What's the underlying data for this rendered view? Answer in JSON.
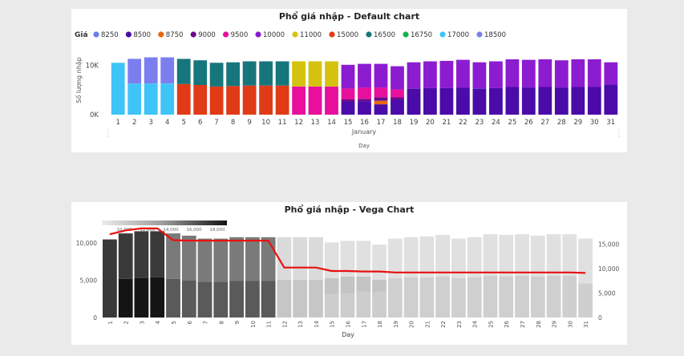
{
  "default_chart": {
    "title": "Phổ giá nhập - Default chart",
    "legend_label": "Giá",
    "ylabel": "Số lượng nhập",
    "xlabel": "Day",
    "month_label": "January",
    "y_ticks": [
      {
        "v": 0,
        "label": "0K"
      },
      {
        "v": 10000,
        "label": "10K"
      }
    ]
  },
  "vega_chart": {
    "title": "Phổ giá nhập - Vega Chart",
    "xlabel": "Day",
    "left_ticks": [
      {
        "v": 0,
        "label": "0"
      },
      {
        "v": 5000,
        "label": "5,000"
      },
      {
        "v": 10000,
        "label": "10,000"
      }
    ],
    "right_ticks": [
      {
        "v": 0,
        "label": "0"
      },
      {
        "v": 5000,
        "label": "5,000"
      },
      {
        "v": 10000,
        "label": "10,000"
      },
      {
        "v": 15000,
        "label": "15,000"
      }
    ],
    "gradient_ticks": [
      "10,000",
      "12,000",
      "14,000",
      "16,000",
      "18,000"
    ]
  },
  "chart_data": [
    {
      "type": "bar",
      "stacked": true,
      "title": "Phổ giá nhập - Default chart",
      "xlabel": "Day",
      "ylabel": "Số lượng nhập",
      "x_group_label": "January",
      "ylim": [
        0,
        12500
      ],
      "legend_title": "Giá",
      "legend_position": "top-left",
      "grid": false,
      "legend": [
        {
          "name": "8250",
          "color": "#6b7bef"
        },
        {
          "name": "8500",
          "color": "#4b0ba8"
        },
        {
          "name": "8750",
          "color": "#e8680f"
        },
        {
          "name": "9000",
          "color": "#6b0b8c"
        },
        {
          "name": "9500",
          "color": "#e80f9c"
        },
        {
          "name": "10000",
          "color": "#8c1cd0"
        },
        {
          "name": "11000",
          "color": "#d4c20f"
        },
        {
          "name": "15000",
          "color": "#e03a16"
        },
        {
          "name": "16500",
          "color": "#16767c"
        },
        {
          "name": "16750",
          "color": "#10b54a"
        },
        {
          "name": "17000",
          "color": "#3ec4f7"
        },
        {
          "name": "18500",
          "color": "#7c7ef0"
        }
      ],
      "days": [
        {
          "day": "1",
          "stack": [
            {
              "c": "#3ec4f7",
              "v": 10500
            }
          ]
        },
        {
          "day": "2",
          "stack": [
            {
              "c": "#3ec4f7",
              "v": 6300
            },
            {
              "c": "#7c7ef0",
              "v": 5000
            }
          ]
        },
        {
          "day": "3",
          "stack": [
            {
              "c": "#3ec4f7",
              "v": 6300
            },
            {
              "c": "#7c7ef0",
              "v": 5300
            }
          ]
        },
        {
          "day": "4",
          "stack": [
            {
              "c": "#3ec4f7",
              "v": 6300
            },
            {
              "c": "#7c7ef0",
              "v": 5300
            }
          ]
        },
        {
          "day": "5",
          "stack": [
            {
              "c": "#e03a16",
              "v": 6200
            },
            {
              "c": "#16767c",
              "v": 5100
            }
          ]
        },
        {
          "day": "6",
          "stack": [
            {
              "c": "#e03a16",
              "v": 6000
            },
            {
              "c": "#16767c",
              "v": 5000
            }
          ]
        },
        {
          "day": "7",
          "stack": [
            {
              "c": "#e03a16",
              "v": 5700
            },
            {
              "c": "#16767c",
              "v": 4800
            }
          ]
        },
        {
          "day": "8",
          "stack": [
            {
              "c": "#e03a16",
              "v": 5800
            },
            {
              "c": "#16767c",
              "v": 4800
            }
          ]
        },
        {
          "day": "9",
          "stack": [
            {
              "c": "#e03a16",
              "v": 5900
            },
            {
              "c": "#16767c",
              "v": 4900
            }
          ]
        },
        {
          "day": "10",
          "stack": [
            {
              "c": "#e03a16",
              "v": 5900
            },
            {
              "c": "#16767c",
              "v": 4900
            }
          ]
        },
        {
          "day": "11",
          "stack": [
            {
              "c": "#e03a16",
              "v": 5900
            },
            {
              "c": "#16767c",
              "v": 4900
            }
          ]
        },
        {
          "day": "12",
          "stack": [
            {
              "c": "#e80f9c",
              "v": 5700
            },
            {
              "c": "#d4c20f",
              "v": 5100
            }
          ]
        },
        {
          "day": "13",
          "stack": [
            {
              "c": "#e80f9c",
              "v": 5700
            },
            {
              "c": "#d4c20f",
              "v": 5100
            }
          ]
        },
        {
          "day": "14",
          "stack": [
            {
              "c": "#e80f9c",
              "v": 5700
            },
            {
              "c": "#d4c20f",
              "v": 5100
            }
          ]
        },
        {
          "day": "15",
          "stack": [
            {
              "c": "#4b0ba8",
              "v": 2600
            },
            {
              "c": "#6b0b8c",
              "v": 500
            },
            {
              "c": "#e80f9c",
              "v": 2200
            },
            {
              "c": "#8c1cd0",
              "v": 4800
            }
          ]
        },
        {
          "day": "16",
          "stack": [
            {
              "c": "#4b0ba8",
              "v": 2700
            },
            {
              "c": "#6b0b8c",
              "v": 500
            },
            {
              "c": "#e80f9c",
              "v": 2300
            },
            {
              "c": "#8c1cd0",
              "v": 4800
            }
          ]
        },
        {
          "day": "17",
          "stack": [
            {
              "c": "#4b0ba8",
              "v": 2100
            },
            {
              "c": "#e8680f",
              "v": 700
            },
            {
              "c": "#6b0b8c",
              "v": 700
            },
            {
              "c": "#e80f9c",
              "v": 2000
            },
            {
              "c": "#8c1cd0",
              "v": 4800
            }
          ]
        },
        {
          "day": "18",
          "stack": [
            {
              "c": "#4b0ba8",
              "v": 3000
            },
            {
              "c": "#6b0b8c",
              "v": 500
            },
            {
              "c": "#e80f9c",
              "v": 1600
            },
            {
              "c": "#8c1cd0",
              "v": 4700
            }
          ]
        },
        {
          "day": "19",
          "stack": [
            {
              "c": "#4b0ba8",
              "v": 5300
            },
            {
              "c": "#8c1cd0",
              "v": 5300
            }
          ]
        },
        {
          "day": "20",
          "stack": [
            {
              "c": "#4b0ba8",
              "v": 5400
            },
            {
              "c": "#8c1cd0",
              "v": 5400
            }
          ]
        },
        {
          "day": "21",
          "stack": [
            {
              "c": "#4b0ba8",
              "v": 5400
            },
            {
              "c": "#8c1cd0",
              "v": 5500
            }
          ]
        },
        {
          "day": "22",
          "stack": [
            {
              "c": "#4b0ba8",
              "v": 5500
            },
            {
              "c": "#8c1cd0",
              "v": 5600
            }
          ]
        },
        {
          "day": "23",
          "stack": [
            {
              "c": "#4b0ba8",
              "v": 5300
            },
            {
              "c": "#8c1cd0",
              "v": 5300
            }
          ]
        },
        {
          "day": "24",
          "stack": [
            {
              "c": "#4b0ba8",
              "v": 5400
            },
            {
              "c": "#8c1cd0",
              "v": 5400
            }
          ]
        },
        {
          "day": "25",
          "stack": [
            {
              "c": "#4b0ba8",
              "v": 5600
            },
            {
              "c": "#8c1cd0",
              "v": 5600
            }
          ]
        },
        {
          "day": "26",
          "stack": [
            {
              "c": "#4b0ba8",
              "v": 5500
            },
            {
              "c": "#8c1cd0",
              "v": 5600
            }
          ]
        },
        {
          "day": "27",
          "stack": [
            {
              "c": "#4b0ba8",
              "v": 5600
            },
            {
              "c": "#8c1cd0",
              "v": 5600
            }
          ]
        },
        {
          "day": "28",
          "stack": [
            {
              "c": "#4b0ba8",
              "v": 5500
            },
            {
              "c": "#8c1cd0",
              "v": 5500
            }
          ]
        },
        {
          "day": "29",
          "stack": [
            {
              "c": "#4b0ba8",
              "v": 5600
            },
            {
              "c": "#8c1cd0",
              "v": 5600
            }
          ]
        },
        {
          "day": "30",
          "stack": [
            {
              "c": "#4b0ba8",
              "v": 5600
            },
            {
              "c": "#8c1cd0",
              "v": 5600
            }
          ]
        },
        {
          "day": "31",
          "stack": [
            {
              "c": "#4b0ba8",
              "v": 6100
            },
            {
              "c": "#8c1cd0",
              "v": 4500
            }
          ]
        }
      ]
    },
    {
      "type": "bar",
      "stacked": true,
      "title": "Phổ giá nhập - Vega Chart",
      "xlabel": "Day",
      "ylim": [
        0,
        12500
      ],
      "y2lim": [
        0,
        19000
      ],
      "legend_position": "top-left",
      "grid": false,
      "gradient_range": [
        9000,
        18500
      ],
      "days": [
        {
          "day": "1",
          "stack": [
            {
              "c": "#3a3a3a",
              "v": 10500
            }
          ],
          "price": 17000
        },
        {
          "day": "2",
          "stack": [
            {
              "c": "#141414",
              "v": 5200
            },
            {
              "c": "#3a3a3a",
              "v": 6100
            }
          ],
          "price": 17800
        },
        {
          "day": "3",
          "stack": [
            {
              "c": "#141414",
              "v": 5300
            },
            {
              "c": "#3a3a3a",
              "v": 6300
            }
          ],
          "price": 18200
        },
        {
          "day": "4",
          "stack": [
            {
              "c": "#141414",
              "v": 5400
            },
            {
              "c": "#3a3a3a",
              "v": 6200
            }
          ],
          "price": 18200
        },
        {
          "day": "5",
          "stack": [
            {
              "c": "#5a5a5a",
              "v": 5200
            },
            {
              "c": "#7a7a7a",
              "v": 6100
            }
          ],
          "price": 15800
        },
        {
          "day": "6",
          "stack": [
            {
              "c": "#5a5a5a",
              "v": 5000
            },
            {
              "c": "#7a7a7a",
              "v": 6000
            }
          ],
          "price": 15700
        },
        {
          "day": "7",
          "stack": [
            {
              "c": "#5a5a5a",
              "v": 4800
            },
            {
              "c": "#7a7a7a",
              "v": 5800
            }
          ],
          "price": 15700
        },
        {
          "day": "8",
          "stack": [
            {
              "c": "#5a5a5a",
              "v": 4800
            },
            {
              "c": "#7a7a7a",
              "v": 5800
            }
          ],
          "price": 15700
        },
        {
          "day": "9",
          "stack": [
            {
              "c": "#5a5a5a",
              "v": 4900
            },
            {
              "c": "#7a7a7a",
              "v": 5900
            }
          ],
          "price": 15700
        },
        {
          "day": "10",
          "stack": [
            {
              "c": "#5a5a5a",
              "v": 4900
            },
            {
              "c": "#7a7a7a",
              "v": 5900
            }
          ],
          "price": 15700
        },
        {
          "day": "11",
          "stack": [
            {
              "c": "#5a5a5a",
              "v": 4900
            },
            {
              "c": "#7a7a7a",
              "v": 5900
            }
          ],
          "price": 15700
        },
        {
          "day": "12",
          "stack": [
            {
              "c": "#c6c6c6",
              "v": 5100
            },
            {
              "c": "#dadada",
              "v": 5700
            }
          ],
          "price": 10200
        },
        {
          "day": "13",
          "stack": [
            {
              "c": "#c6c6c6",
              "v": 5100
            },
            {
              "c": "#dadada",
              "v": 5700
            }
          ],
          "price": 10200
        },
        {
          "day": "14",
          "stack": [
            {
              "c": "#c6c6c6",
              "v": 5100
            },
            {
              "c": "#dadada",
              "v": 5700
            }
          ],
          "price": 10200
        },
        {
          "day": "15",
          "stack": [
            {
              "c": "#cdcdcd",
              "v": 3100
            },
            {
              "c": "#c4c4c4",
              "v": 2200
            },
            {
              "c": "#e0e0e0",
              "v": 4800
            }
          ],
          "price": 9500
        },
        {
          "day": "16",
          "stack": [
            {
              "c": "#cdcdcd",
              "v": 3200
            },
            {
              "c": "#c4c4c4",
              "v": 2300
            },
            {
              "c": "#e0e0e0",
              "v": 4800
            }
          ],
          "price": 9500
        },
        {
          "day": "17",
          "stack": [
            {
              "c": "#cdcdcd",
              "v": 3500
            },
            {
              "c": "#c4c4c4",
              "v": 2000
            },
            {
              "c": "#e0e0e0",
              "v": 4800
            }
          ],
          "price": 9400
        },
        {
          "day": "18",
          "stack": [
            {
              "c": "#cdcdcd",
              "v": 3500
            },
            {
              "c": "#c4c4c4",
              "v": 1600
            },
            {
              "c": "#e0e0e0",
              "v": 4700
            }
          ],
          "price": 9400
        },
        {
          "day": "19",
          "stack": [
            {
              "c": "#cfcfcf",
              "v": 5300
            },
            {
              "c": "#e0e0e0",
              "v": 5300
            }
          ],
          "price": 9200
        },
        {
          "day": "20",
          "stack": [
            {
              "c": "#cfcfcf",
              "v": 5400
            },
            {
              "c": "#e0e0e0",
              "v": 5400
            }
          ],
          "price": 9200
        },
        {
          "day": "21",
          "stack": [
            {
              "c": "#cfcfcf",
              "v": 5400
            },
            {
              "c": "#e0e0e0",
              "v": 5500
            }
          ],
          "price": 9200
        },
        {
          "day": "22",
          "stack": [
            {
              "c": "#cfcfcf",
              "v": 5500
            },
            {
              "c": "#e0e0e0",
              "v": 5600
            }
          ],
          "price": 9200
        },
        {
          "day": "23",
          "stack": [
            {
              "c": "#cfcfcf",
              "v": 5300
            },
            {
              "c": "#e0e0e0",
              "v": 5300
            }
          ],
          "price": 9200
        },
        {
          "day": "24",
          "stack": [
            {
              "c": "#cfcfcf",
              "v": 5400
            },
            {
              "c": "#e0e0e0",
              "v": 5400
            }
          ],
          "price": 9200
        },
        {
          "day": "25",
          "stack": [
            {
              "c": "#cfcfcf",
              "v": 5600
            },
            {
              "c": "#e0e0e0",
              "v": 5600
            }
          ],
          "price": 9200
        },
        {
          "day": "26",
          "stack": [
            {
              "c": "#cfcfcf",
              "v": 5500
            },
            {
              "c": "#e0e0e0",
              "v": 5600
            }
          ],
          "price": 9200
        },
        {
          "day": "27",
          "stack": [
            {
              "c": "#cfcfcf",
              "v": 5600
            },
            {
              "c": "#e0e0e0",
              "v": 5600
            }
          ],
          "price": 9200
        },
        {
          "day": "28",
          "stack": [
            {
              "c": "#cfcfcf",
              "v": 5500
            },
            {
              "c": "#e0e0e0",
              "v": 5500
            }
          ],
          "price": 9200
        },
        {
          "day": "29",
          "stack": [
            {
              "c": "#cfcfcf",
              "v": 5600
            },
            {
              "c": "#e0e0e0",
              "v": 5600
            }
          ],
          "price": 9200
        },
        {
          "day": "30",
          "stack": [
            {
              "c": "#cfcfcf",
              "v": 5600
            },
            {
              "c": "#e0e0e0",
              "v": 5600
            }
          ],
          "price": 9200
        },
        {
          "day": "31",
          "stack": [
            {
              "c": "#cfcfcf",
              "v": 4600
            },
            {
              "c": "#e0e0e0",
              "v": 6000
            }
          ],
          "price": 9100
        }
      ],
      "line_color": "#e8110f"
    }
  ]
}
